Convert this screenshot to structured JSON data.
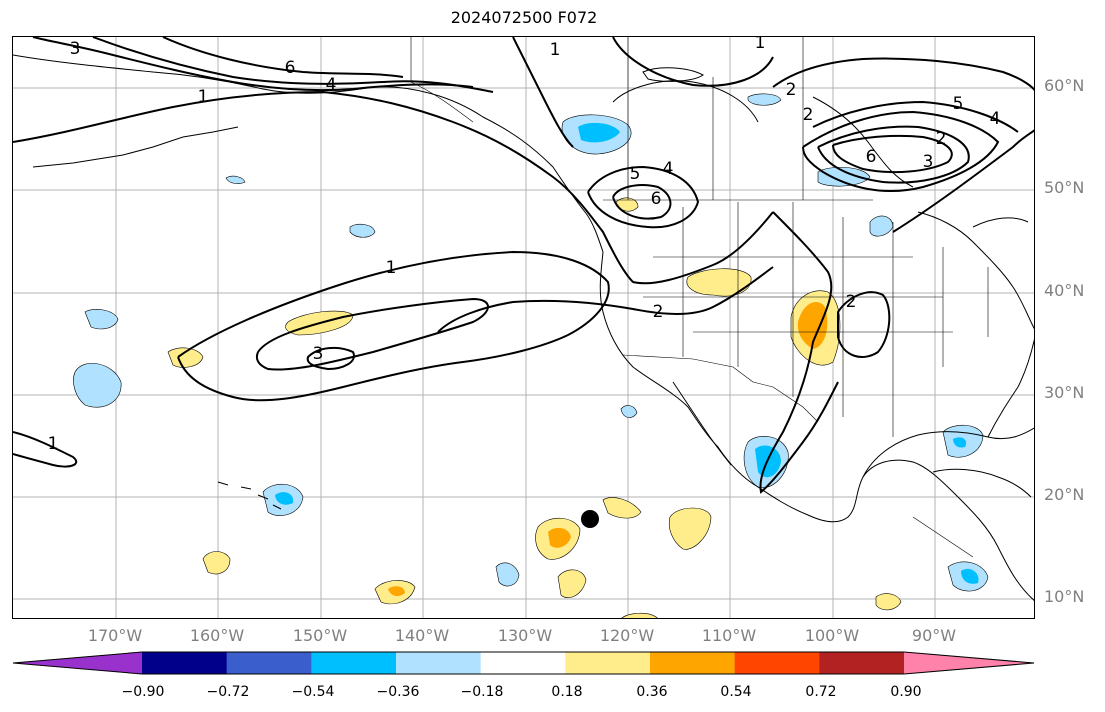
{
  "title": "2024072500 F072",
  "lat_labels": [
    "60°N",
    "50°N",
    "40°N",
    "30°N",
    "20°N",
    "10°N"
  ],
  "lon_labels": [
    "170°W",
    "160°W",
    "150°W",
    "140°W",
    "130°W",
    "120°W",
    "110°W",
    "100°W",
    "90°W"
  ],
  "contour_labels": [
    "1",
    "1",
    "1",
    "1",
    "1",
    "2",
    "2",
    "2",
    "2",
    "2",
    "3",
    "3",
    "3",
    "4",
    "4",
    "4",
    "5",
    "5",
    "6",
    "6",
    "6"
  ],
  "colorbar": {
    "tick_labels": [
      "−0.90",
      "−0.72",
      "−0.54",
      "−0.36",
      "−0.18",
      "0.18",
      "0.36",
      "0.54",
      "0.72",
      "0.90"
    ],
    "colors": [
      "#9932cc",
      "#00008b",
      "#3a5fcd",
      "#00bfff",
      "#b0e2ff",
      "#ffffff",
      "#ffec8b",
      "#ffa500",
      "#ff4500",
      "#b22222",
      "#ff82ab"
    ]
  },
  "map": {
    "projection": "equirectangular",
    "lon_range": [
      -180,
      -80
    ],
    "lat_range": [
      8,
      65
    ],
    "grid": true,
    "gridline_interval_deg": 10,
    "marker": "black-dot"
  }
}
